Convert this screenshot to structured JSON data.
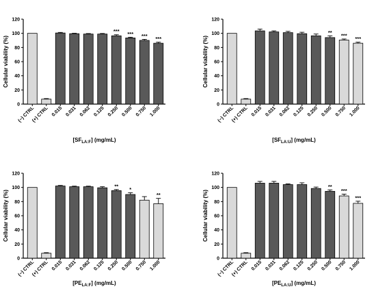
{
  "colors": {
    "control_bar": "#d9d9d9",
    "dark_bar": "#595959",
    "light_bar": "#d9d9d9",
    "axis": "#000000"
  },
  "chart_data": [
    {
      "type": "bar",
      "panel": "top-left",
      "categories": [
        "(−) CTRL",
        "(+) CTRL",
        "0.015",
        "0.031",
        "0.062",
        "0.125",
        "0.250",
        "0.500",
        "0.750",
        "1.000"
      ],
      "values": [
        100,
        7,
        100.5,
        99.5,
        99,
        99,
        96.5,
        93.5,
        90,
        86
      ],
      "errors": [
        0,
        0.8,
        0.8,
        0.6,
        0.7,
        0.8,
        1.5,
        1.0,
        1.5,
        1.5
      ],
      "significance": [
        "",
        "",
        "",
        "",
        "",
        "",
        "***",
        "***",
        "***",
        "***"
      ],
      "bar_shades": [
        "light",
        "light",
        "dark",
        "dark",
        "dark",
        "dark",
        "dark",
        "dark",
        "dark",
        "dark"
      ],
      "ylabel": "Cellular viability (%)",
      "xlabel": {
        "prefix": "[SF",
        "sub": "LA:F",
        "suffix": "] (mg/mL)"
      },
      "ylim": [
        0,
        120
      ],
      "yticks": [
        "0",
        "20",
        "40",
        "60",
        "80",
        "100",
        "120"
      ],
      "grid": false
    },
    {
      "type": "bar",
      "panel": "top-right",
      "categories": [
        "(−) CTRL",
        "(+) CTRL",
        "0.015",
        "0.031",
        "0.062",
        "0.125",
        "0.250",
        "0.500",
        "0.750",
        "1.000"
      ],
      "values": [
        100,
        7,
        103.5,
        102,
        101,
        99.5,
        96.5,
        94,
        90.5,
        86
      ],
      "errors": [
        0,
        0.8,
        2.5,
        1.5,
        1.8,
        2.0,
        2.5,
        2.5,
        1.5,
        1.5
      ],
      "significance": [
        "",
        "",
        "",
        "",
        "",
        "",
        "",
        "**",
        "***",
        "***"
      ],
      "bar_shades": [
        "light",
        "light",
        "dark",
        "dark",
        "dark",
        "dark",
        "dark",
        "dark",
        "light",
        "light"
      ],
      "ylabel": "Cellular viability (%)",
      "xlabel": {
        "prefix": "[SF",
        "sub": "LA:U",
        "suffix": "] (mg/mL)"
      },
      "ylim": [
        0,
        120
      ],
      "yticks": [
        "0",
        "20",
        "40",
        "60",
        "80",
        "100",
        "120"
      ],
      "grid": false
    },
    {
      "type": "bar",
      "panel": "bottom-left",
      "categories": [
        "(−) CTRL",
        "(+) CTRL",
        "0.015",
        "0.031",
        "0.062",
        "0.125",
        "0.250",
        "0.500",
        "0.750",
        "1.000"
      ],
      "values": [
        100,
        7,
        102,
        101,
        101,
        99.5,
        95.5,
        90,
        82,
        77
      ],
      "errors": [
        0,
        0.8,
        0.8,
        0.8,
        0.8,
        1.5,
        1.5,
        2.5,
        5,
        7.5
      ],
      "significance": [
        "",
        "",
        "",
        "",
        "",
        "",
        "**",
        "*",
        "",
        "**"
      ],
      "bar_shades": [
        "light",
        "light",
        "dark",
        "dark",
        "dark",
        "dark",
        "dark",
        "dark",
        "light",
        "light"
      ],
      "ylabel": "Cellular viability (%)",
      "xlabel": {
        "prefix": "[PE",
        "sub": "LA:F",
        "suffix": "] (mg/mL)"
      },
      "ylim": [
        0,
        120
      ],
      "yticks": [
        "0",
        "20",
        "40",
        "60",
        "80",
        "100",
        "120"
      ],
      "grid": false
    },
    {
      "type": "bar",
      "panel": "bottom-right",
      "categories": [
        "(−) CTRL",
        "(+) CTRL",
        "0.015",
        "0.031",
        "0.062",
        "0.125",
        "0.250",
        "0.500",
        "0.750",
        "1.000"
      ],
      "values": [
        100,
        7,
        106,
        106,
        104,
        104,
        98.5,
        94.5,
        88,
        77.5
      ],
      "errors": [
        0,
        0.8,
        2.5,
        2.5,
        1.0,
        2.5,
        2.0,
        2.0,
        2.5,
        3.0
      ],
      "significance": [
        "",
        "",
        "",
        "",
        "",
        "",
        "",
        "**",
        "***",
        "***"
      ],
      "bar_shades": [
        "light",
        "light",
        "dark",
        "dark",
        "dark",
        "dark",
        "dark",
        "dark",
        "light",
        "light"
      ],
      "ylabel": "Cellular viability (%)",
      "xlabel": {
        "prefix": "[PE",
        "sub": "LA:U",
        "suffix": "] (mg/mL)"
      },
      "ylim": [
        0,
        120
      ],
      "yticks": [
        "0",
        "20",
        "40",
        "60",
        "80",
        "100",
        "120"
      ],
      "grid": false
    }
  ]
}
